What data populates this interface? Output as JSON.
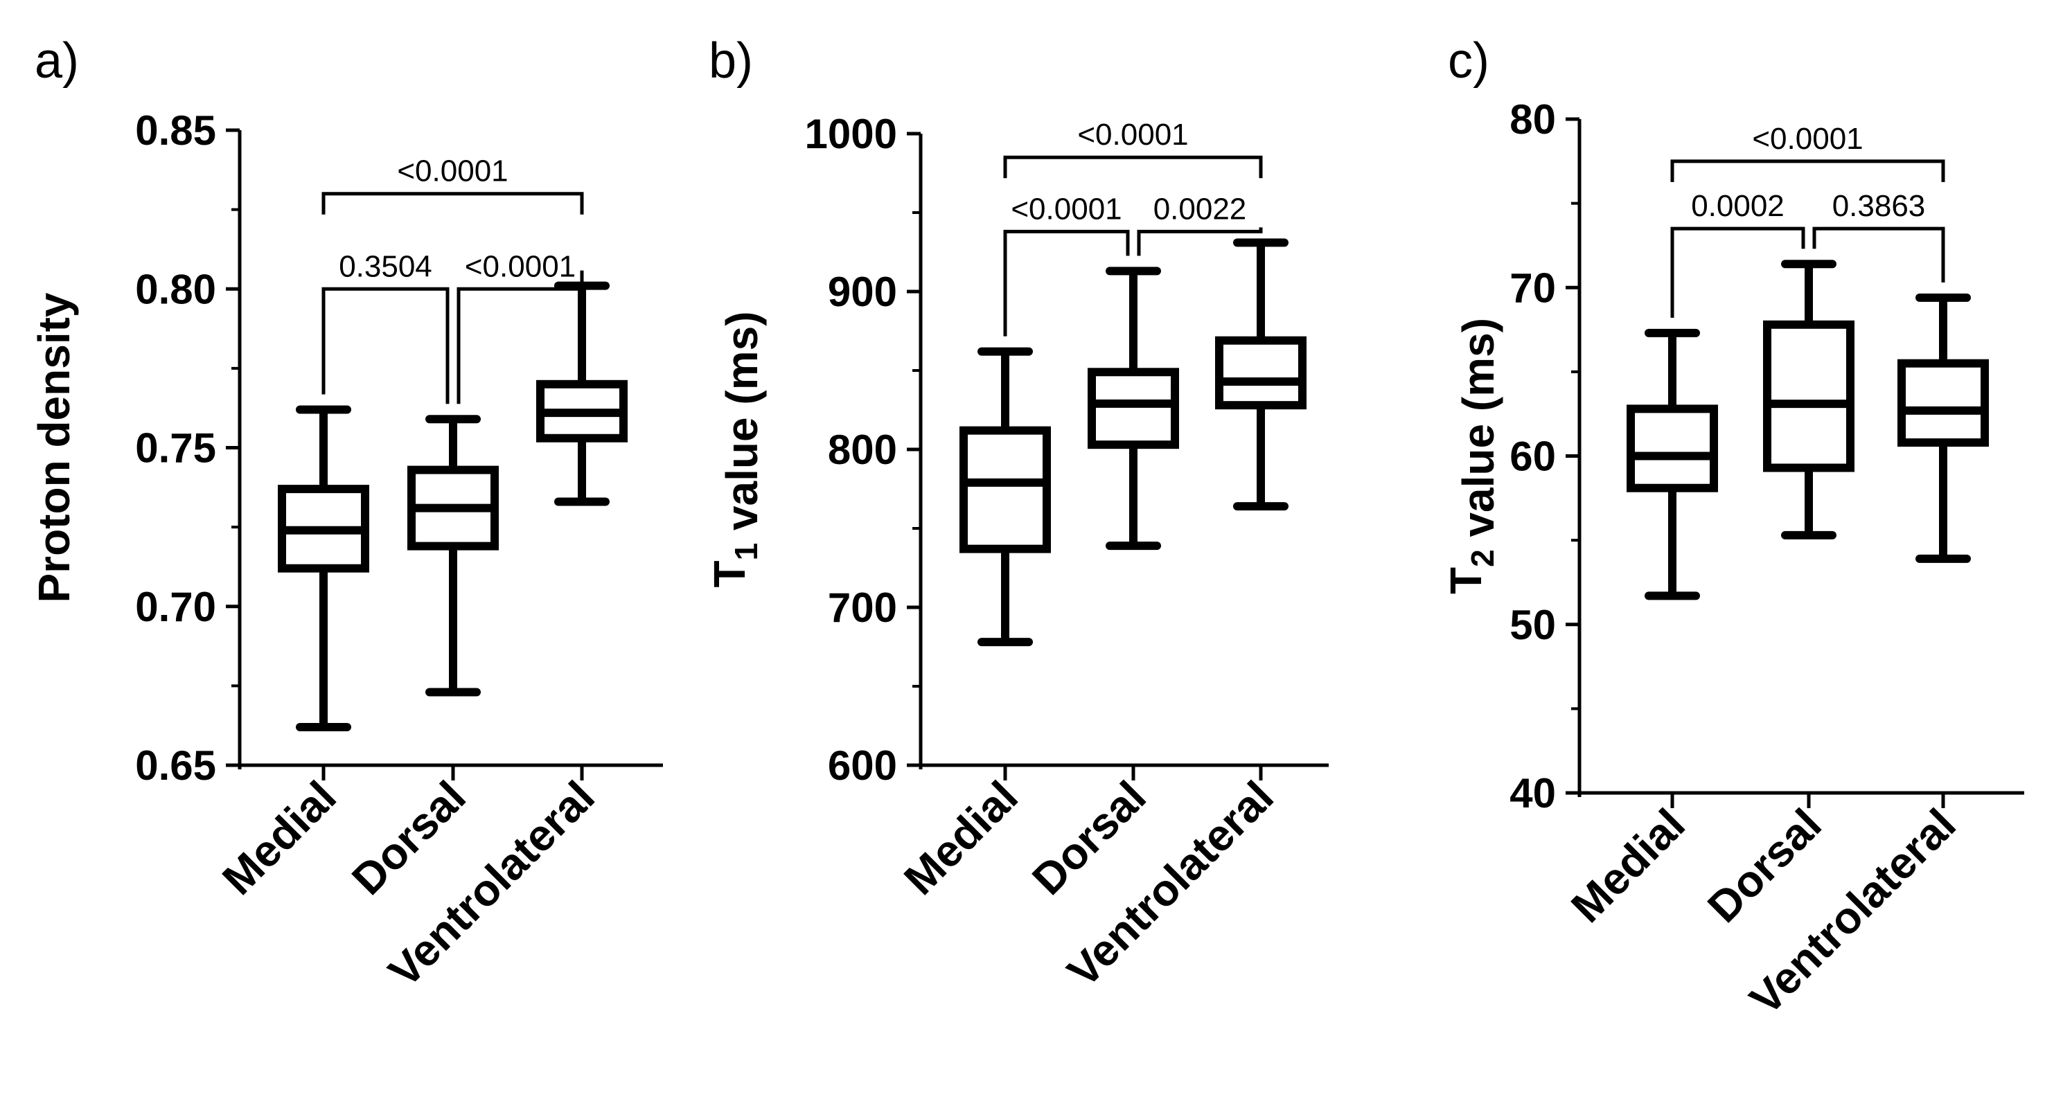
{
  "chart_data": [
    {
      "type": "box",
      "panel_label": "a)",
      "ylabel_parts": [
        {
          "text": "Proton density",
          "sub": ""
        }
      ],
      "ylabel": "Proton density",
      "ylim": [
        0.65,
        0.85
      ],
      "ticks": [
        0.65,
        0.7,
        0.75,
        0.8,
        0.85
      ],
      "tick_labels": [
        "0.65",
        "0.70",
        "0.75",
        "0.80",
        "0.85"
      ],
      "minor_ticks": [
        0.675,
        0.725,
        0.775,
        0.825
      ],
      "categories": [
        "Medial",
        "Dorsal",
        "Ventrolateral"
      ],
      "boxes": [
        {
          "min": 0.662,
          "q1": 0.712,
          "median": 0.724,
          "q3": 0.737,
          "max": 0.762
        },
        {
          "min": 0.673,
          "q1": 0.719,
          "median": 0.731,
          "q3": 0.743,
          "max": 0.759
        },
        {
          "min": 0.733,
          "q1": 0.753,
          "median": 0.761,
          "q3": 0.77,
          "max": 0.801
        }
      ],
      "comparisons": [
        {
          "a": 0,
          "b": 1,
          "label": "0.3504",
          "y": 0.8,
          "level": 1
        },
        {
          "a": 1,
          "b": 2,
          "label": "<0.0001",
          "y": 0.8,
          "level": 1
        },
        {
          "a": 0,
          "b": 2,
          "label": "<0.0001",
          "y": 0.83,
          "level": 2
        }
      ]
    },
    {
      "type": "box",
      "panel_label": "b)",
      "ylabel_parts": [
        {
          "text": "T",
          "sub": "1"
        },
        {
          "text": " value (ms)",
          "sub": ""
        }
      ],
      "ylabel": "T1 value (ms)",
      "ylim": [
        600,
        1000
      ],
      "ticks": [
        600,
        700,
        800,
        900,
        1000
      ],
      "tick_labels": [
        "600",
        "700",
        "800",
        "900",
        "1000"
      ],
      "minor_ticks": [
        650,
        750,
        850,
        950
      ],
      "categories": [
        "Medial",
        "Dorsal",
        "Ventrolateral"
      ],
      "boxes": [
        {
          "min": 678,
          "q1": 737,
          "median": 779,
          "q3": 812,
          "max": 862
        },
        {
          "min": 739,
          "q1": 803,
          "median": 829,
          "q3": 849,
          "max": 913
        },
        {
          "min": 764,
          "q1": 828,
          "median": 843,
          "q3": 869,
          "max": 931
        }
      ],
      "comparisons": [
        {
          "a": 0,
          "b": 1,
          "label": "<0.0001",
          "y": 938,
          "level": 1
        },
        {
          "a": 1,
          "b": 2,
          "label": "0.0022",
          "y": 938,
          "level": 1
        },
        {
          "a": 0,
          "b": 2,
          "label": "<0.0001",
          "y": 985,
          "level": 2
        }
      ]
    },
    {
      "type": "box",
      "panel_label": "c)",
      "ylabel_parts": [
        {
          "text": "T",
          "sub": "2"
        },
        {
          "text": " value (ms)",
          "sub": ""
        }
      ],
      "ylabel": "T2 value (ms)",
      "ylim": [
        40,
        80
      ],
      "ticks": [
        40,
        50,
        60,
        70,
        80
      ],
      "tick_labels": [
        "40",
        "50",
        "60",
        "70",
        "80"
      ],
      "minor_ticks": [
        45,
        55,
        65,
        75
      ],
      "categories": [
        "Medial",
        "Dorsal",
        "Ventrolateral"
      ],
      "boxes": [
        {
          "min": 51.7,
          "q1": 58.1,
          "median": 60.0,
          "q3": 62.8,
          "max": 67.3
        },
        {
          "min": 55.3,
          "q1": 59.3,
          "median": 63.1,
          "q3": 67.8,
          "max": 71.4
        },
        {
          "min": 53.9,
          "q1": 60.8,
          "median": 62.7,
          "q3": 65.5,
          "max": 69.4
        }
      ],
      "comparisons": [
        {
          "a": 0,
          "b": 1,
          "label": "0.0002",
          "y": 73.5,
          "level": 1
        },
        {
          "a": 1,
          "b": 2,
          "label": "0.3863",
          "y": 73.5,
          "level": 1
        },
        {
          "a": 0,
          "b": 2,
          "label": "<0.0001",
          "y": 77.5,
          "level": 2
        }
      ]
    }
  ]
}
